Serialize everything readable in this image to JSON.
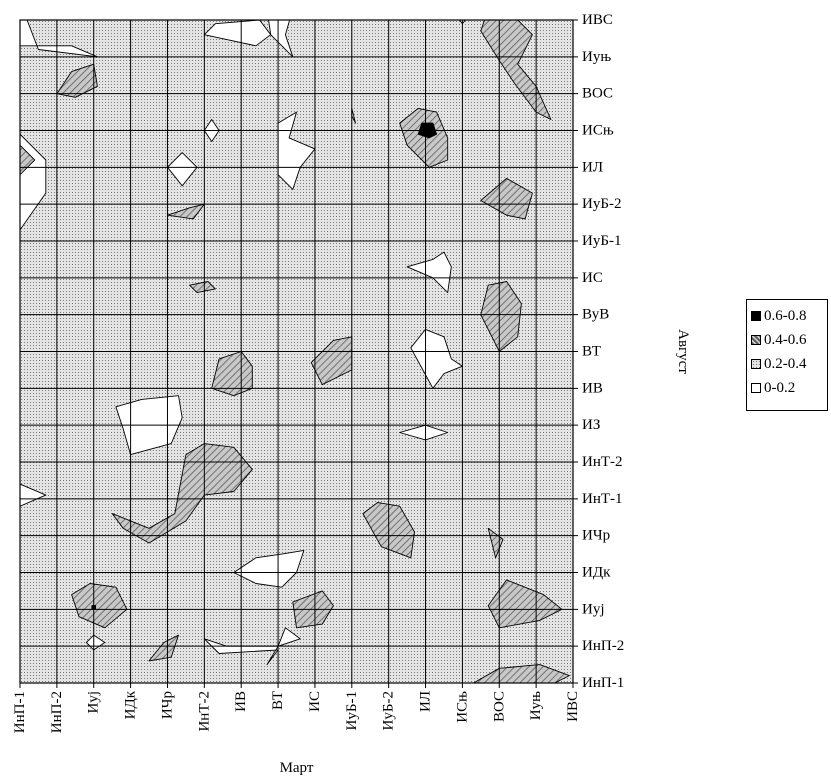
{
  "chart_data": {
    "type": "heatmap",
    "subtype": "contour",
    "xlabel": "Март",
    "ylabel": "Август",
    "x_categories": [
      "ИнП-1",
      "ИнП-2",
      "Иуј",
      "ИДк",
      "ИЧр",
      "ИнТ-2",
      "ИВ",
      "ВТ",
      "ИС",
      "ИуБ-1",
      "ИуБ-2",
      "ИЛ",
      "ИСњ",
      "ВОС",
      "Иуњ",
      "ИВС"
    ],
    "y_categories": [
      "ИнП-1",
      "ИнП-2",
      "Иуј",
      "ИДк",
      "ИЧр",
      "ИнТ-1",
      "ИнТ-2",
      "ИЗ",
      "ИВ",
      "ВТ",
      "ВуВ",
      "ИС",
      "ИуБ-1",
      "ИуБ-2",
      "ИЛ",
      "ИСњ",
      "ВОС",
      "Иуњ",
      "ИВС"
    ],
    "levels": [
      {
        "label": "0.6-0.8",
        "min": 0.6,
        "max": 0.8,
        "fill": "#000000"
      },
      {
        "label": "0.4-0.6",
        "min": 0.4,
        "max": 0.6,
        "fill": "hatch"
      },
      {
        "label": "0.2-0.4",
        "min": 0.2,
        "max": 0.4,
        "fill": "dots"
      },
      {
        "label": "0-0.2",
        "min": 0.0,
        "max": 0.2,
        "fill": "#ffffff"
      }
    ],
    "background_level": "0.2-0.4",
    "regions": [
      {
        "level": "0-0.2",
        "points": [
          [
            0,
            14.9
          ],
          [
            0.7,
            14.2
          ],
          [
            0.7,
            13.3
          ],
          [
            0,
            12.3
          ]
        ]
      },
      {
        "level": "0-0.2",
        "points": [
          [
            0,
            18.5
          ],
          [
            0,
            17.3
          ],
          [
            1.4,
            17.3
          ],
          [
            2.1,
            17.0
          ],
          [
            0.5,
            17.2
          ]
        ]
      },
      {
        "level": "0-0.2",
        "points": [
          [
            0,
            5.4
          ],
          [
            0.7,
            5.1
          ],
          [
            0,
            4.8
          ]
        ]
      },
      {
        "level": "0-0.2",
        "points": [
          [
            11,
            19.0
          ],
          [
            11.6,
            18.4
          ],
          [
            12,
            17.9
          ],
          [
            12.4,
            18.4
          ],
          [
            12.3,
            19.0
          ]
        ]
      },
      {
        "level": "0-0.2",
        "points": [
          [
            6.6,
            19.0
          ],
          [
            6.7,
            18.3
          ],
          [
            6.8,
            17.6
          ],
          [
            7.4,
            17.0
          ],
          [
            7.2,
            17.6
          ],
          [
            7.4,
            18.3
          ],
          [
            7.3,
            19.0
          ]
        ]
      },
      {
        "level": "0-0.2",
        "points": [
          [
            5,
            17.6
          ],
          [
            5.3,
            17.9
          ],
          [
            6.5,
            18.0
          ],
          [
            6.8,
            17.6
          ],
          [
            6.4,
            17.3
          ]
        ]
      },
      {
        "level": "0-0.2",
        "points": [
          [
            7,
            15.2
          ],
          [
            7.5,
            15.5
          ],
          [
            7.3,
            14.8
          ],
          [
            8.0,
            14.5
          ],
          [
            7.6,
            14.0
          ],
          [
            7.4,
            13.4
          ],
          [
            7.0,
            13.8
          ]
        ]
      },
      {
        "level": "0-0.2",
        "points": [
          [
            4,
            14.0
          ],
          [
            4.4,
            14.4
          ],
          [
            4.8,
            14.0
          ],
          [
            4.4,
            13.5
          ]
        ]
      },
      {
        "level": "0-0.2",
        "points": [
          [
            5,
            15.0
          ],
          [
            5.2,
            15.3
          ],
          [
            5.4,
            15.0
          ],
          [
            5.2,
            14.7
          ]
        ]
      },
      {
        "level": "0-0.2",
        "points": [
          [
            10.5,
            11.3
          ],
          [
            11.2,
            11.5
          ],
          [
            11.5,
            11.7
          ],
          [
            11.7,
            11.3
          ],
          [
            11.6,
            10.6
          ],
          [
            11.2,
            11.0
          ]
        ]
      },
      {
        "level": "0-0.2",
        "points": [
          [
            10.6,
            9.1
          ],
          [
            11.0,
            9.6
          ],
          [
            11.5,
            9.4
          ],
          [
            11.7,
            8.8
          ],
          [
            12.0,
            8.6
          ],
          [
            11.5,
            8.4
          ],
          [
            11.2,
            8.0
          ]
        ]
      },
      {
        "level": "0-0.2",
        "points": [
          [
            2.6,
            7.5
          ],
          [
            3.3,
            7.7
          ],
          [
            4.3,
            7.8
          ],
          [
            4.4,
            7.2
          ],
          [
            4.1,
            6.5
          ],
          [
            3.0,
            6.2
          ],
          [
            2.8,
            6.9
          ]
        ]
      },
      {
        "level": "0-0.2",
        "points": [
          [
            10.3,
            6.8
          ],
          [
            11.0,
            7.0
          ],
          [
            11.6,
            6.8
          ],
          [
            11.0,
            6.6
          ]
        ]
      },
      {
        "level": "0-0.2",
        "points": [
          [
            5.8,
            3.0
          ],
          [
            6.4,
            3.4
          ],
          [
            7.1,
            3.5
          ],
          [
            7.7,
            3.6
          ],
          [
            7.5,
            3.0
          ],
          [
            7.1,
            2.6
          ],
          [
            6.4,
            2.7
          ]
        ]
      },
      {
        "level": "0-0.2",
        "points": [
          [
            5.0,
            1.2
          ],
          [
            5.6,
            1.0
          ],
          [
            7.0,
            1.0
          ],
          [
            7.6,
            1.2
          ],
          [
            7.2,
            1.5
          ],
          [
            7.0,
            1.0
          ],
          [
            6.7,
            0.5
          ],
          [
            7.0,
            0.9
          ],
          [
            5.4,
            0.8
          ]
        ]
      },
      {
        "level": "0-0.2",
        "points": [
          [
            1.8,
            1.1
          ],
          [
            2.0,
            1.3
          ],
          [
            2.3,
            1.1
          ],
          [
            2.0,
            0.9
          ]
        ]
      },
      {
        "level": "0-0.2",
        "points": [
          [
            9.0,
            15.4
          ],
          [
            9.0,
            15.6
          ],
          [
            9.1,
            15.2
          ]
        ]
      },
      {
        "level": "0.4-0.6",
        "points": [
          [
            10.3,
            15.2
          ],
          [
            10.5,
            14.6
          ],
          [
            11.1,
            14.0
          ],
          [
            11.6,
            14.2
          ],
          [
            11.6,
            14.8
          ],
          [
            11.3,
            15.5
          ],
          [
            10.8,
            15.6
          ]
        ]
      },
      {
        "level": "0.4-0.6",
        "points": [
          [
            12.5,
            17.7
          ],
          [
            13.0,
            16.9
          ],
          [
            13.4,
            16.3
          ],
          [
            14.0,
            15.5
          ],
          [
            14.4,
            15.3
          ],
          [
            14.0,
            16.2
          ],
          [
            13.5,
            16.8
          ],
          [
            13.9,
            17.6
          ],
          [
            13.4,
            18.1
          ],
          [
            12.7,
            18.3
          ]
        ]
      },
      {
        "level": "0.4-0.6",
        "points": [
          [
            12.5,
            13.1
          ],
          [
            13.2,
            12.7
          ],
          [
            13.7,
            12.6
          ],
          [
            13.9,
            13.3
          ],
          [
            13.2,
            13.7
          ]
        ]
      },
      {
        "level": "0.4-0.6",
        "points": [
          [
            12.5,
            10.0
          ],
          [
            12.7,
            10.8
          ],
          [
            13.2,
            10.9
          ],
          [
            13.6,
            10.3
          ],
          [
            13.5,
            9.4
          ],
          [
            13.0,
            9.0
          ]
        ]
      },
      {
        "level": "0.4-0.6",
        "points": [
          [
            1.0,
            16.0
          ],
          [
            1.4,
            16.6
          ],
          [
            2.0,
            16.8
          ],
          [
            2.1,
            16.2
          ],
          [
            1.5,
            15.9
          ]
        ]
      },
      {
        "level": "0.4-0.6",
        "points": [
          [
            0,
            14.6
          ],
          [
            0.4,
            14.2
          ],
          [
            0,
            13.8
          ]
        ]
      },
      {
        "level": "0.4-0.6",
        "points": [
          [
            4.0,
            12.7
          ],
          [
            4.6,
            12.9
          ],
          [
            5.0,
            13.0
          ],
          [
            4.7,
            12.6
          ]
        ]
      },
      {
        "level": "0.4-0.6",
        "points": [
          [
            4.6,
            10.8
          ],
          [
            5.1,
            10.9
          ],
          [
            5.3,
            10.7
          ],
          [
            4.8,
            10.6
          ]
        ]
      },
      {
        "level": "0.4-0.6",
        "points": [
          [
            5.2,
            8.0
          ],
          [
            5.4,
            8.8
          ],
          [
            6.0,
            9.0
          ],
          [
            6.3,
            8.6
          ],
          [
            6.3,
            8.0
          ],
          [
            5.8,
            7.8
          ]
        ]
      },
      {
        "level": "0.4-0.6",
        "points": [
          [
            7.9,
            8.7
          ],
          [
            8.5,
            9.3
          ],
          [
            9.0,
            9.4
          ],
          [
            9.0,
            8.5
          ],
          [
            8.2,
            8.1
          ]
        ]
      },
      {
        "level": "0.4-0.6",
        "points": [
          [
            4.5,
            6.2
          ],
          [
            5.0,
            6.5
          ],
          [
            5.8,
            6.4
          ],
          [
            6.3,
            5.8
          ],
          [
            5.8,
            5.2
          ],
          [
            5.0,
            5.1
          ],
          [
            4.5,
            4.4
          ],
          [
            3.5,
            3.8
          ],
          [
            2.8,
            4.2
          ],
          [
            2.5,
            4.6
          ],
          [
            3.5,
            4.2
          ],
          [
            4.2,
            4.6
          ]
        ]
      },
      {
        "level": "0.4-0.6",
        "points": [
          [
            9.3,
            4.6
          ],
          [
            9.8,
            3.7
          ],
          [
            10.6,
            3.4
          ],
          [
            10.7,
            4.1
          ],
          [
            10.3,
            4.8
          ],
          [
            9.7,
            4.9
          ]
        ]
      },
      {
        "level": "0.4-0.6",
        "points": [
          [
            12.7,
            4.2
          ],
          [
            12.9,
            3.4
          ],
          [
            13.1,
            3.9
          ]
        ]
      },
      {
        "level": "0.4-0.6",
        "points": [
          [
            1.4,
            2.4
          ],
          [
            1.6,
            1.8
          ],
          [
            2.3,
            1.5
          ],
          [
            2.9,
            2.0
          ],
          [
            2.6,
            2.6
          ],
          [
            1.9,
            2.7
          ]
        ]
      },
      {
        "level": "0.4-0.6",
        "points": [
          [
            7.4,
            2.2
          ],
          [
            8.2,
            2.5
          ],
          [
            8.5,
            2.1
          ],
          [
            8.2,
            1.6
          ],
          [
            7.5,
            1.5
          ]
        ]
      },
      {
        "level": "0.4-0.6",
        "points": [
          [
            12.7,
            2.1
          ],
          [
            13.2,
            2.8
          ],
          [
            14.2,
            2.4
          ],
          [
            14.7,
            2.0
          ],
          [
            14.1,
            1.7
          ],
          [
            13.0,
            1.5
          ]
        ]
      },
      {
        "level": "0.4-0.6",
        "points": [
          [
            3.5,
            0.6
          ],
          [
            3.9,
            1.1
          ],
          [
            4.3,
            1.3
          ],
          [
            4.1,
            0.7
          ]
        ]
      },
      {
        "level": "0.4-0.6",
        "points": [
          [
            12.3,
            0.0
          ],
          [
            13.0,
            0.4
          ],
          [
            14.1,
            0.5
          ],
          [
            14.9,
            0.2
          ],
          [
            14.5,
            0.0
          ]
        ]
      },
      {
        "level": "0.4-0.6",
        "points": [
          [
            1.3,
            18.2
          ],
          [
            2.0,
            18.3
          ],
          [
            2.1,
            18.9
          ],
          [
            1.6,
            18.7
          ]
        ]
      },
      {
        "level": "0.6-0.8",
        "points": [
          [
            10.8,
            14.9
          ],
          [
            11.1,
            14.8
          ],
          [
            11.3,
            14.9
          ],
          [
            11.2,
            15.2
          ],
          [
            10.9,
            15.2
          ]
        ]
      },
      {
        "level": "0.6-0.8",
        "points": [
          [
            1.95,
            2.0
          ],
          [
            2.05,
            2.0
          ],
          [
            2.05,
            2.1
          ],
          [
            1.95,
            2.1
          ]
        ]
      }
    ],
    "grid": true
  },
  "legend": {
    "items": [
      {
        "label": "0.6-0.8",
        "fill": "#000000"
      },
      {
        "label": "0.4-0.6",
        "fill": "hatch"
      },
      {
        "label": "0.2-0.4",
        "fill": "dots"
      },
      {
        "label": "0-0.2",
        "fill": "#ffffff"
      }
    ]
  },
  "colors": {
    "dots_bg": "#e4e4e4",
    "dots_fg": "#7a7a7a",
    "hatch_bg": "#c8c8c8",
    "hatch_line": "#555555"
  }
}
